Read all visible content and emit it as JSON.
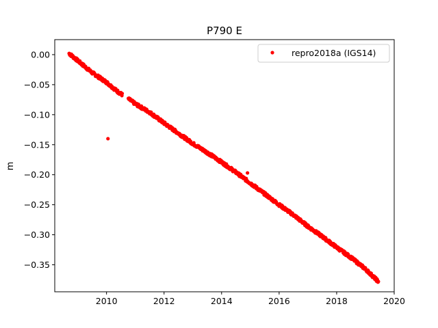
{
  "chart_data": {
    "type": "scatter",
    "title": "P790 E",
    "xlabel": "",
    "ylabel": "m",
    "xlim": [
      2008.2,
      2020.0
    ],
    "ylim": [
      -0.395,
      0.025
    ],
    "xticks": [
      2010,
      2012,
      2014,
      2016,
      2018,
      2020
    ],
    "xtick_labels": [
      "2010",
      "2012",
      "2014",
      "2016",
      "2018",
      "2020"
    ],
    "yticks": [
      0.0,
      -0.05,
      -0.1,
      -0.15,
      -0.2,
      -0.25,
      -0.3,
      -0.35
    ],
    "ytick_labels": [
      "0.00",
      "−0.05",
      "−0.10",
      "−0.15",
      "−0.20",
      "−0.25",
      "−0.30",
      "−0.35"
    ],
    "grid": false,
    "legend_position": "top-right",
    "series": [
      {
        "name": "repro2018a (IGS14)",
        "color": "#ff0000",
        "marker": "circle",
        "trend_x": [
          2008.7,
          2009.0,
          2009.5,
          2010.0,
          2010.4,
          2010.8,
          2011.0,
          2011.5,
          2012.0,
          2012.5,
          2013.0,
          2013.5,
          2014.0,
          2014.5,
          2015.0,
          2015.5,
          2016.0,
          2016.5,
          2017.0,
          2017.5,
          2018.0,
          2018.5,
          2019.0,
          2019.45
        ],
        "trend_y": [
          0.002,
          -0.01,
          -0.03,
          -0.046,
          -0.062,
          -0.075,
          -0.082,
          -0.096,
          -0.114,
          -0.131,
          -0.148,
          -0.163,
          -0.179,
          -0.196,
          -0.214,
          -0.232,
          -0.25,
          -0.267,
          -0.286,
          -0.303,
          -0.321,
          -0.338,
          -0.357,
          -0.378
        ],
        "gap": [
          2010.55,
          2010.75
        ],
        "outliers": [
          {
            "x": 2010.05,
            "y": -0.14
          },
          {
            "x": 2014.9,
            "y": -0.197
          },
          {
            "x": 2014.9,
            "y": -0.211
          }
        ]
      }
    ]
  }
}
